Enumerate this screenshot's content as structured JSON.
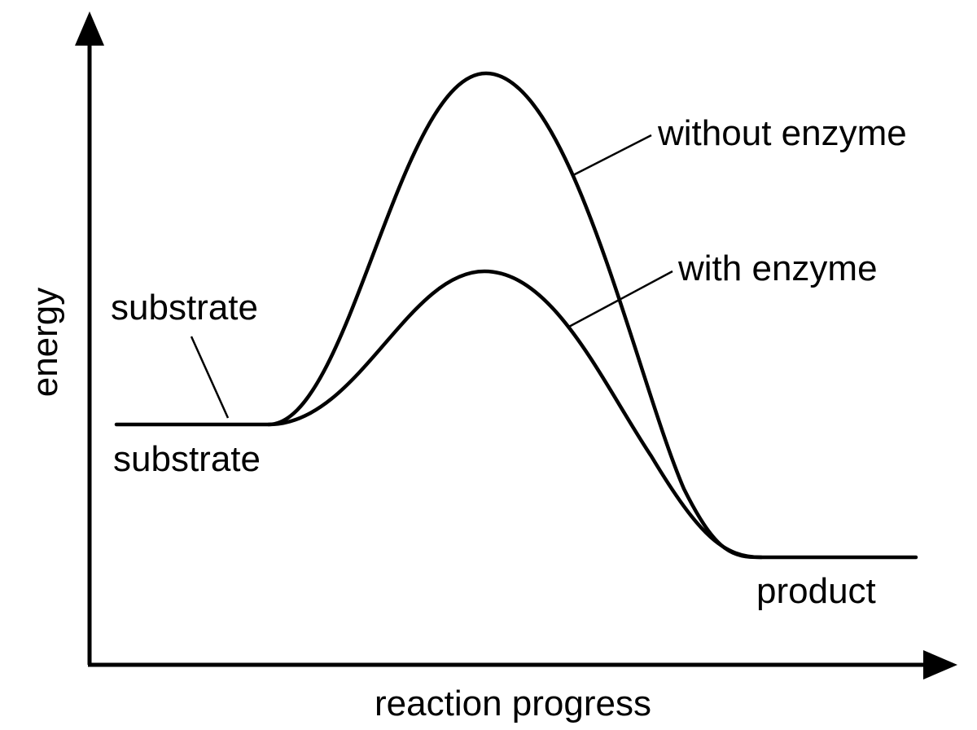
{
  "axes": {
    "x_label": "reaction progress",
    "y_label": "energy"
  },
  "labels": {
    "without_enzyme": "without enzyme",
    "with_enzyme": "with enzyme",
    "substrate_top": "substrate",
    "substrate_bottom": "substrate",
    "product": "product"
  },
  "colors": {
    "line": "#000000",
    "background": "#ffffff"
  }
}
